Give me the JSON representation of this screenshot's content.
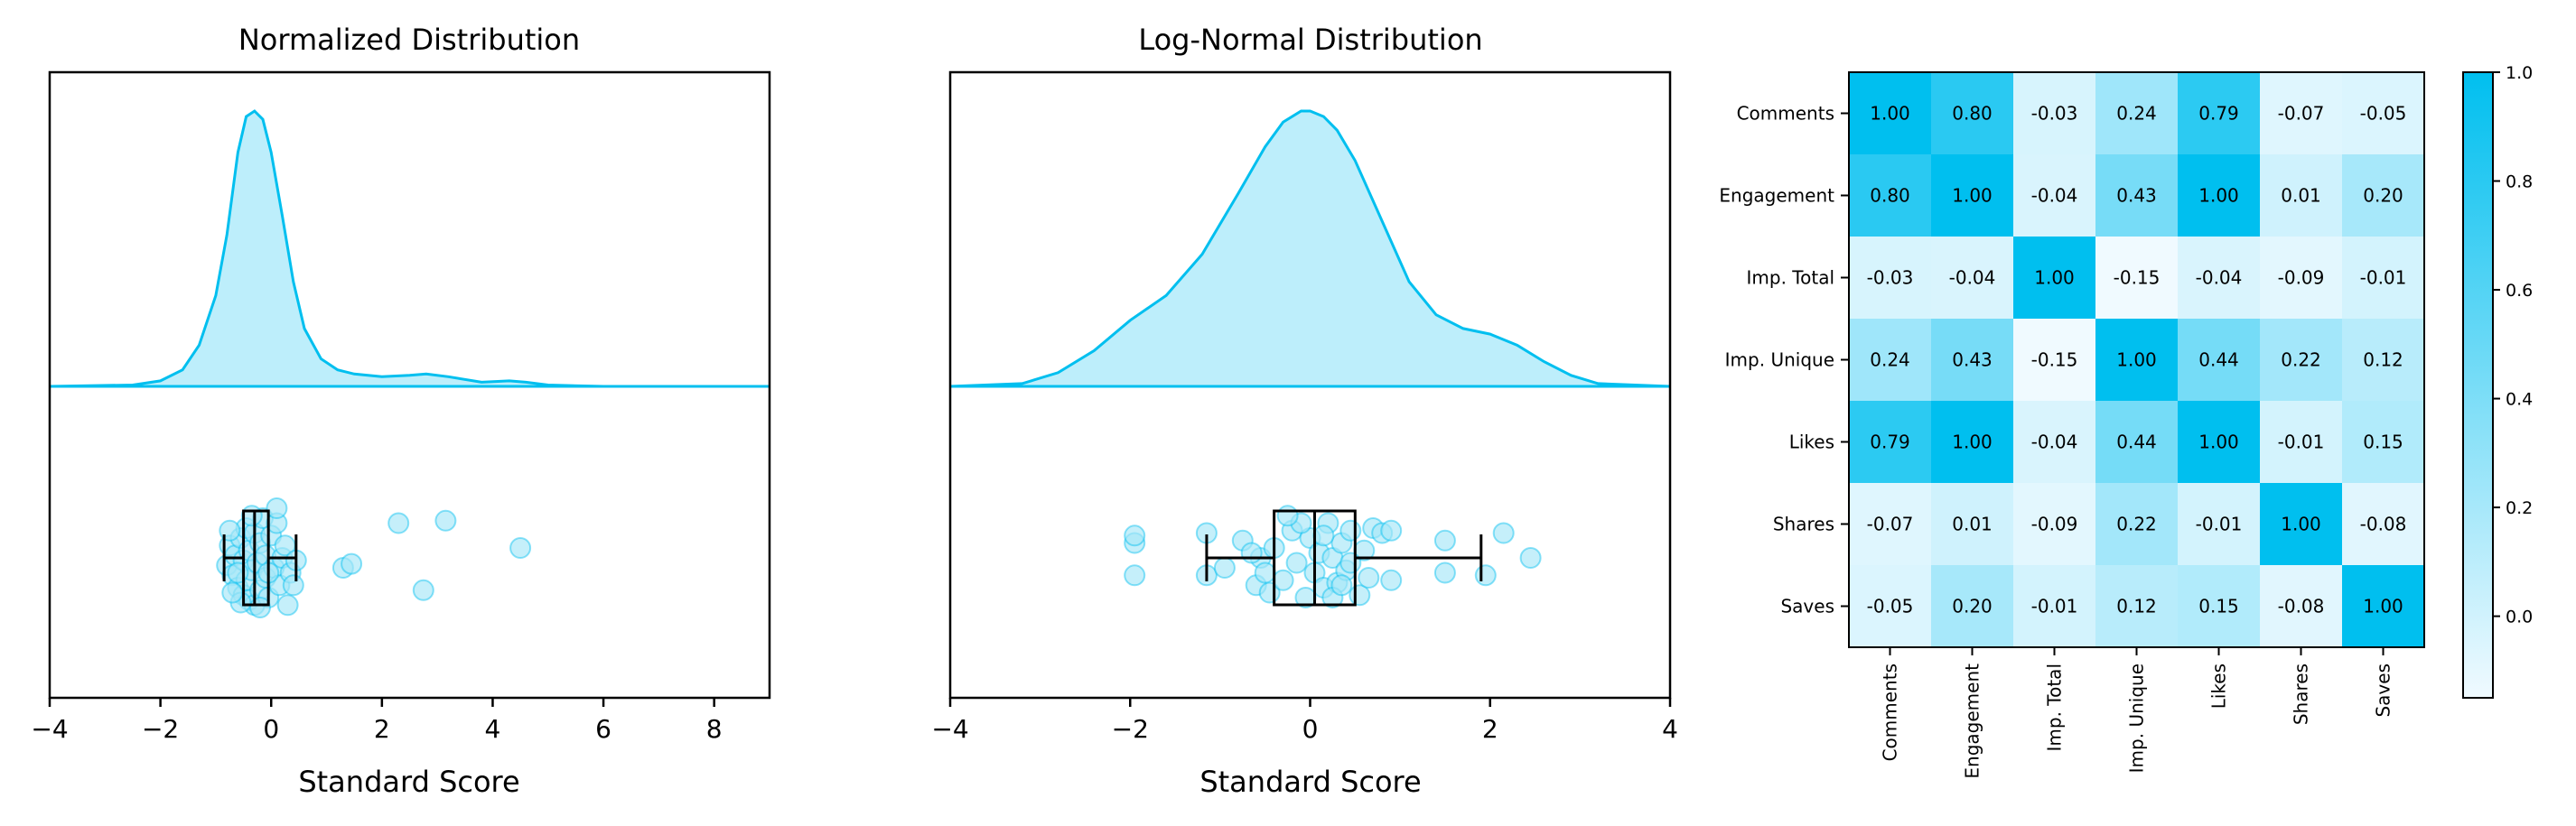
{
  "colors": {
    "accent": "#00bfef",
    "accent_fill": "#bdeefb",
    "point_fill": "#a6e7f8",
    "heat_low": "#f0faff",
    "heat_high": "#00bfef",
    "axis": "#000000"
  },
  "chart_data": [
    {
      "type": "area",
      "title": "Normalized Distribution",
      "xlabel": "Standard Score",
      "xlim": [
        -4,
        9
      ],
      "xticks": [
        -4,
        -2,
        0,
        2,
        4,
        6,
        8
      ],
      "density": {
        "x": [
          -4,
          -2.5,
          -2,
          -1.6,
          -1.3,
          -1.0,
          -0.8,
          -0.6,
          -0.45,
          -0.3,
          -0.15,
          0,
          0.2,
          0.4,
          0.6,
          0.9,
          1.2,
          1.5,
          2,
          2.5,
          2.8,
          3.2,
          3.8,
          4.3,
          4.6,
          5,
          6,
          9
        ],
        "y": [
          0,
          0.005,
          0.02,
          0.06,
          0.15,
          0.33,
          0.55,
          0.85,
          0.98,
          1.0,
          0.97,
          0.85,
          0.62,
          0.38,
          0.21,
          0.1,
          0.06,
          0.045,
          0.035,
          0.04,
          0.045,
          0.035,
          0.015,
          0.02,
          0.015,
          0.005,
          0,
          0
        ]
      },
      "boxplot": {
        "whisker_low": -0.85,
        "q1": -0.5,
        "median": -0.3,
        "q3": -0.05,
        "whisker_high": 0.45
      },
      "points": [
        [
          -0.8,
          0.15
        ],
        [
          -0.75,
          -0.25
        ],
        [
          -0.7,
          0.35
        ],
        [
          -0.65,
          -0.05
        ],
        [
          -0.6,
          0.6
        ],
        [
          -0.55,
          -0.4
        ],
        [
          -0.5,
          0.75
        ],
        [
          -0.5,
          0.05
        ],
        [
          -0.45,
          -0.6
        ],
        [
          -0.45,
          0.45
        ],
        [
          -0.4,
          -0.15
        ],
        [
          -0.4,
          0.85
        ],
        [
          -0.35,
          0.25
        ],
        [
          -0.3,
          -0.5
        ],
        [
          -0.3,
          0.95
        ],
        [
          -0.25,
          0.1
        ],
        [
          -0.2,
          -0.3
        ],
        [
          -0.2,
          0.65
        ],
        [
          -0.15,
          -0.8
        ],
        [
          -0.1,
          0.4
        ],
        [
          -0.1,
          -0.05
        ],
        [
          -0.05,
          0.8
        ],
        [
          0,
          -0.45
        ],
        [
          0.05,
          0.2
        ],
        [
          0.1,
          -0.7
        ],
        [
          0.15,
          0.55
        ],
        [
          0.2,
          0.0
        ],
        [
          0.25,
          -0.25
        ],
        [
          0.3,
          0.95
        ],
        [
          0.35,
          0.3
        ],
        [
          0.45,
          0.05
        ],
        [
          -0.75,
          -0.55
        ],
        [
          -0.6,
          0.3
        ],
        [
          -0.35,
          -0.85
        ],
        [
          -0.05,
          0.3
        ],
        [
          0.1,
          -1.0
        ],
        [
          -0.2,
          1.0
        ],
        [
          0.4,
          0.55
        ],
        [
          -0.55,
          0.9
        ],
        [
          -0.7,
          0.7
        ],
        [
          1.3,
          0.2
        ],
        [
          1.45,
          0.12
        ],
        [
          2.3,
          -0.7
        ],
        [
          2.75,
          0.65
        ],
        [
          3.15,
          -0.75
        ],
        [
          4.5,
          -0.2
        ]
      ]
    },
    {
      "type": "area",
      "title": "Log-Normal Distribution",
      "xlabel": "Standard Score",
      "xlim": [
        -4,
        4
      ],
      "xticks": [
        -4,
        -2,
        0,
        2,
        4
      ],
      "density": {
        "x": [
          -4,
          -3.2,
          -2.8,
          -2.4,
          -2.0,
          -1.6,
          -1.2,
          -0.8,
          -0.5,
          -0.3,
          -0.1,
          0,
          0.15,
          0.3,
          0.5,
          0.8,
          1.1,
          1.4,
          1.7,
          2.0,
          2.3,
          2.6,
          2.9,
          3.2,
          4
        ],
        "y": [
          0,
          0.01,
          0.05,
          0.13,
          0.24,
          0.33,
          0.48,
          0.7,
          0.87,
          0.96,
          1.0,
          1.0,
          0.98,
          0.93,
          0.82,
          0.6,
          0.38,
          0.26,
          0.21,
          0.19,
          0.15,
          0.09,
          0.04,
          0.01,
          0
        ]
      },
      "boxplot": {
        "whisker_low": -1.15,
        "q1": -0.4,
        "median": 0.05,
        "q3": 0.5,
        "whisker_high": 1.9
      },
      "points": [
        [
          -1.95,
          0.35
        ],
        [
          -1.95,
          -0.3
        ],
        [
          -1.95,
          -0.45
        ],
        [
          -1.15,
          0.35
        ],
        [
          -1.15,
          -0.5
        ],
        [
          -0.95,
          0.2
        ],
        [
          -0.75,
          -0.35
        ],
        [
          -0.6,
          0.55
        ],
        [
          -0.55,
          0.0
        ],
        [
          -0.45,
          0.7
        ],
        [
          -0.4,
          -0.2
        ],
        [
          -0.3,
          0.45
        ],
        [
          -0.2,
          -0.55
        ],
        [
          -0.15,
          0.1
        ],
        [
          -0.05,
          0.8
        ],
        [
          0.0,
          -0.4
        ],
        [
          0.05,
          0.3
        ],
        [
          0.1,
          -0.1
        ],
        [
          0.15,
          0.6
        ],
        [
          0.2,
          -0.7
        ],
        [
          0.25,
          0.0
        ],
        [
          0.3,
          0.5
        ],
        [
          0.35,
          -0.3
        ],
        [
          0.4,
          0.25
        ],
        [
          0.45,
          -0.55
        ],
        [
          0.55,
          0.75
        ],
        [
          0.6,
          -0.15
        ],
        [
          0.65,
          0.4
        ],
        [
          0.7,
          -0.6
        ],
        [
          0.8,
          -0.5
        ],
        [
          0.9,
          -0.55
        ],
        [
          0.9,
          0.45
        ],
        [
          0.45,
          0.1
        ],
        [
          -0.1,
          -0.7
        ],
        [
          0.25,
          0.8
        ],
        [
          -0.5,
          0.3
        ],
        [
          -0.25,
          -0.85
        ],
        [
          0.15,
          -0.45
        ],
        [
          0.35,
          0.55
        ],
        [
          -0.65,
          -0.1
        ],
        [
          1.5,
          -0.35
        ],
        [
          1.5,
          0.3
        ],
        [
          1.95,
          0.35
        ],
        [
          2.15,
          -0.5
        ],
        [
          2.45,
          0.0
        ]
      ]
    },
    {
      "type": "heatmap",
      "labels": [
        "Comments",
        "Engagement",
        "Imp. Total",
        "Imp. Unique",
        "Likes",
        "Shares",
        "Saves"
      ],
      "matrix": [
        [
          1.0,
          0.8,
          -0.03,
          0.24,
          0.79,
          -0.07,
          -0.05
        ],
        [
          0.8,
          1.0,
          -0.04,
          0.43,
          1.0,
          0.01,
          0.2
        ],
        [
          -0.03,
          -0.04,
          1.0,
          -0.15,
          -0.04,
          -0.09,
          -0.01
        ],
        [
          0.24,
          0.43,
          -0.15,
          1.0,
          0.44,
          0.22,
          0.12
        ],
        [
          0.79,
          1.0,
          -0.04,
          0.44,
          1.0,
          -0.01,
          0.15
        ],
        [
          -0.07,
          0.01,
          -0.09,
          0.22,
          -0.01,
          1.0,
          -0.08
        ],
        [
          -0.05,
          0.2,
          -0.01,
          0.12,
          0.15,
          -0.08,
          1.0
        ]
      ],
      "matrix_text": [
        [
          "1.00",
          "0.80",
          "-0.03",
          "0.24",
          "0.79",
          "-0.07",
          "-0.05"
        ],
        [
          "0.80",
          "1.00",
          "-0.04",
          "0.43",
          "1.00",
          "0.01",
          "0.20"
        ],
        [
          "-0.03",
          "-0.04",
          "1.00",
          "-0.15",
          "-0.04",
          "-0.09",
          "-0.01"
        ],
        [
          "0.24",
          "0.43",
          "-0.15",
          "1.00",
          "0.44",
          "0.22",
          "0.12"
        ],
        [
          "0.79",
          "1.00",
          "-0.04",
          "0.44",
          "1.00",
          "-0.01",
          "0.15"
        ],
        [
          "-0.07",
          "0.01",
          "-0.09",
          "0.22",
          "-0.01",
          "1.00",
          "-0.08"
        ],
        [
          "-0.05",
          "0.20",
          "-0.01",
          "0.12",
          "0.15",
          "-0.08",
          "1.00"
        ]
      ],
      "colorbar": {
        "vmin": -0.15,
        "vmax": 1.0,
        "ticks": [
          0.0,
          0.2,
          0.4,
          0.6,
          0.8,
          1.0
        ],
        "tick_labels": [
          "0.0",
          "0.2",
          "0.4",
          "0.6",
          "0.8",
          "1.0"
        ]
      }
    }
  ]
}
